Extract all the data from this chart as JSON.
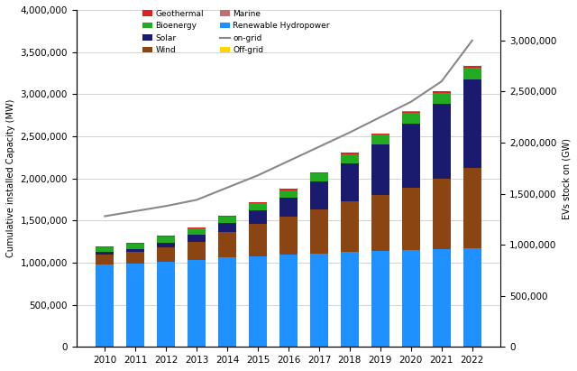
{
  "years": [
    "2010",
    "2011",
    "2012",
    "2013",
    "2014",
    "2015",
    "2016",
    "2017",
    "2018",
    "2019",
    "2020",
    "2021",
    "2022"
  ],
  "renewable_hydropower": [
    980000,
    990000,
    1010000,
    1030000,
    1060000,
    1080000,
    1100000,
    1110000,
    1130000,
    1140000,
    1150000,
    1160000,
    1170000
  ],
  "wind": [
    120000,
    140000,
    175000,
    220000,
    300000,
    380000,
    450000,
    520000,
    600000,
    660000,
    740000,
    840000,
    950000
  ],
  "solar": [
    25000,
    35000,
    55000,
    80000,
    110000,
    160000,
    220000,
    330000,
    450000,
    600000,
    760000,
    880000,
    1050000
  ],
  "bioenergy": [
    58000,
    63000,
    68000,
    73000,
    78000,
    85000,
    92000,
    100000,
    110000,
    118000,
    128000,
    138000,
    148000
  ],
  "geothermal": [
    10000,
    11000,
    11500,
    12000,
    12500,
    13000,
    13500,
    14000,
    14500,
    15000,
    15500,
    16000,
    16500
  ],
  "marine": [
    800,
    800,
    800,
    800,
    800,
    800,
    800,
    800,
    800,
    800,
    800,
    800,
    800
  ],
  "off_grid": [
    300,
    300,
    300,
    300,
    300,
    300,
    300,
    300,
    300,
    300,
    300,
    300,
    300
  ],
  "cumulative_line": [
    1280000,
    1330000,
    1380000,
    1440000,
    1560000,
    1680000,
    1820000,
    1960000,
    2100000,
    2250000,
    2400000,
    2600000,
    3000000
  ],
  "colors": {
    "geothermal": "#dd2222",
    "bioenergy": "#22aa22",
    "solar": "#1a1a6e",
    "wind": "#8b4513",
    "marine": "#c07070",
    "renewable_hydropower": "#1e90ff",
    "off_grid": "#ffd700",
    "line": "#888888"
  },
  "legend_labels": {
    "geothermal": "Geothermal",
    "bioenergy": "Bioenergy",
    "solar": "Solar",
    "wind": "Wind",
    "marine": "Marine",
    "renewable_hydropower": "Renewable Hydropower",
    "off_grid": "Off-grid",
    "line": "on-grid"
  },
  "ylabel_left": "Cumulative installed Capacity (MW)",
  "ylabel_right": "EVs stock on (GW)",
  "ylim_left": [
    0,
    4000000
  ],
  "ylim_right": [
    0,
    3300000
  ],
  "yticks_left": [
    0,
    500000,
    1000000,
    1500000,
    2000000,
    2500000,
    3000000,
    3500000,
    4000000
  ],
  "yticks_right": [
    0,
    500000,
    1000000,
    1500000,
    2000000,
    2500000,
    3000000
  ],
  "grid_color": "#cccccc"
}
